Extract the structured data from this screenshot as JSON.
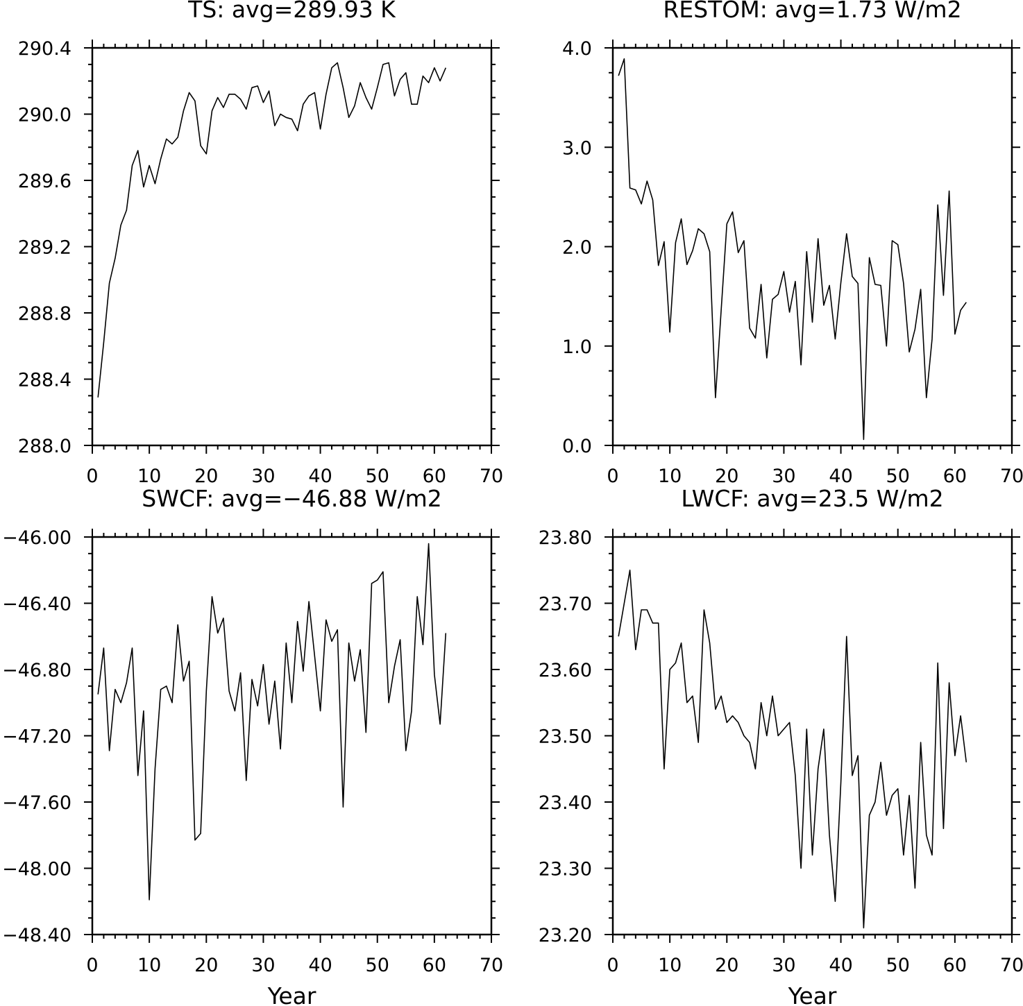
{
  "chart_data": [
    {
      "type": "line",
      "title": "TS: avg=289.93 K",
      "xlabel": "",
      "ylabel": "",
      "xlim": [
        0,
        70
      ],
      "ylim": [
        288.0,
        290.4
      ],
      "xticks": [
        "0",
        "10",
        "20",
        "30",
        "40",
        "50",
        "60",
        "70"
      ],
      "yticks": [
        "288.0",
        "288.4",
        "288.8",
        "289.2",
        "289.6",
        "290.0",
        "290.4"
      ],
      "grid": false,
      "x_start": 1,
      "values": [
        288.29,
        288.62,
        288.98,
        289.13,
        289.33,
        289.42,
        289.69,
        289.78,
        289.56,
        289.69,
        289.58,
        289.73,
        289.85,
        289.82,
        289.86,
        290.02,
        290.13,
        290.08,
        289.81,
        289.76,
        290.02,
        290.1,
        290.04,
        290.12,
        290.12,
        290.09,
        290.03,
        290.16,
        290.17,
        290.07,
        290.14,
        289.93,
        290.0,
        289.98,
        289.97,
        289.9,
        290.06,
        290.11,
        290.13,
        289.91,
        290.12,
        290.28,
        290.31,
        290.16,
        289.98,
        290.05,
        290.19,
        290.1,
        290.03,
        290.16,
        290.3,
        290.31,
        290.11,
        290.21,
        290.25,
        290.06,
        290.06,
        290.23,
        290.19,
        290.28,
        290.2,
        290.28
      ]
    },
    {
      "type": "line",
      "title": "RESTOM: avg=1.73 W/m2",
      "xlabel": "",
      "ylabel": "",
      "xlim": [
        0,
        70
      ],
      "ylim": [
        0.0,
        4.0
      ],
      "xticks": [
        "0",
        "10",
        "20",
        "30",
        "40",
        "50",
        "60",
        "70"
      ],
      "yticks": [
        "0.0",
        "1.0",
        "2.0",
        "3.0",
        "4.0"
      ],
      "grid": false,
      "x_start": 1,
      "values": [
        3.72,
        3.89,
        2.59,
        2.57,
        2.43,
        2.66,
        2.47,
        1.81,
        2.05,
        1.14,
        2.04,
        2.28,
        1.82,
        1.96,
        2.18,
        2.13,
        1.95,
        0.48,
        1.36,
        2.23,
        2.35,
        1.94,
        2.06,
        1.18,
        1.08,
        1.62,
        0.88,
        1.47,
        1.52,
        1.75,
        1.34,
        1.65,
        0.81,
        1.95,
        1.24,
        2.08,
        1.41,
        1.61,
        1.07,
        1.64,
        2.13,
        1.7,
        1.63,
        0.06,
        1.89,
        1.62,
        1.61,
        1.0,
        2.06,
        2.02,
        1.63,
        0.94,
        1.17,
        1.57,
        0.48,
        1.07,
        2.42,
        1.51,
        2.56,
        1.12,
        1.36,
        1.44
      ]
    },
    {
      "type": "line",
      "title": "SWCF: avg=−46.88 W/m2",
      "xlabel": "Year",
      "ylabel": "",
      "xlim": [
        0,
        70
      ],
      "ylim": [
        -48.4,
        -46.0
      ],
      "xticks": [
        "0",
        "10",
        "20",
        "30",
        "40",
        "50",
        "60",
        "70"
      ],
      "yticks": [
        "−48.40",
        "−48.00",
        "−47.60",
        "−47.20",
        "−46.80",
        "−46.40",
        "−46.00"
      ],
      "grid": false,
      "x_start": 1,
      "values": [
        -46.95,
        -46.67,
        -47.29,
        -46.92,
        -47.0,
        -46.88,
        -46.67,
        -47.44,
        -47.05,
        -48.19,
        -47.4,
        -46.92,
        -46.9,
        -47.0,
        -46.53,
        -46.87,
        -46.75,
        -47.83,
        -47.79,
        -46.93,
        -46.36,
        -46.58,
        -46.49,
        -46.93,
        -47.05,
        -46.82,
        -47.47,
        -46.86,
        -47.02,
        -46.77,
        -47.13,
        -46.87,
        -47.28,
        -46.64,
        -47.0,
        -46.51,
        -46.81,
        -46.39,
        -46.72,
        -47.05,
        -46.5,
        -46.63,
        -46.56,
        -47.63,
        -46.64,
        -46.87,
        -46.68,
        -47.18,
        -46.28,
        -46.26,
        -46.21,
        -47.0,
        -46.78,
        -46.62,
        -47.29,
        -47.05,
        -46.36,
        -46.65,
        -46.04,
        -46.83,
        -47.13,
        -46.58
      ]
    },
    {
      "type": "line",
      "title": "LWCF: avg=23.5 W/m2",
      "xlabel": "Year",
      "ylabel": "",
      "xlim": [
        0,
        70
      ],
      "ylim": [
        23.2,
        23.8
      ],
      "xticks": [
        "0",
        "10",
        "20",
        "30",
        "40",
        "50",
        "60",
        "70"
      ],
      "yticks": [
        "23.20",
        "23.30",
        "23.40",
        "23.50",
        "23.60",
        "23.70",
        "23.80"
      ],
      "grid": false,
      "x_start": 1,
      "values": [
        23.65,
        23.7,
        23.75,
        23.63,
        23.69,
        23.69,
        23.67,
        23.67,
        23.45,
        23.6,
        23.61,
        23.64,
        23.55,
        23.56,
        23.49,
        23.69,
        23.64,
        23.54,
        23.56,
        23.52,
        23.53,
        23.52,
        23.5,
        23.49,
        23.45,
        23.55,
        23.5,
        23.56,
        23.5,
        23.51,
        23.52,
        23.44,
        23.3,
        23.51,
        23.32,
        23.45,
        23.51,
        23.35,
        23.25,
        23.43,
        23.65,
        23.44,
        23.47,
        23.21,
        23.38,
        23.4,
        23.46,
        23.38,
        23.41,
        23.42,
        23.32,
        23.41,
        23.27,
        23.49,
        23.35,
        23.32,
        23.61,
        23.36,
        23.58,
        23.47,
        23.53,
        23.46
      ]
    }
  ]
}
